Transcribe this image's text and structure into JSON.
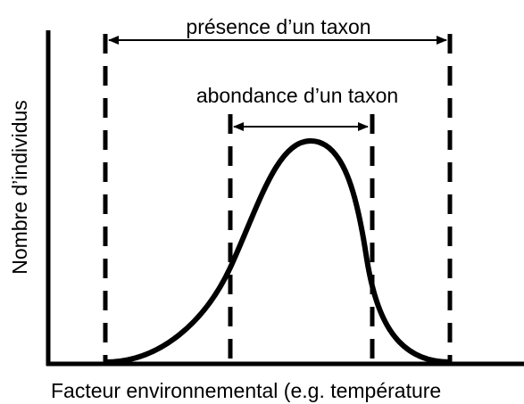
{
  "labels": {
    "presence": "présence d’un taxon",
    "abondance": "abondance d’un taxon",
    "y_axis": "Nombre d’individus",
    "x_axis": "Facteur environnemental (e.g. température"
  }
}
